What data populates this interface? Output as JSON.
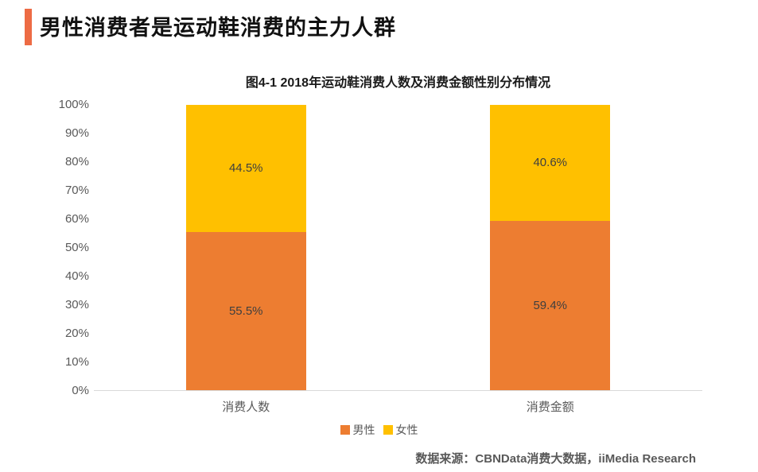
{
  "header": {
    "title": "男性消费者是运动鞋消费的主力人群",
    "accent_color": "#ED6B44"
  },
  "chart_data": {
    "type": "bar",
    "stacked": true,
    "title": "图4-1 2018年运动鞋消费人数及消费金额性别分布情况",
    "categories": [
      "消费人数",
      "消费金额"
    ],
    "series": [
      {
        "key": "male",
        "name": "男性",
        "color": "#ED7D31",
        "values": [
          55.5,
          59.4
        ]
      },
      {
        "key": "female",
        "name": "女性",
        "color": "#FFC000",
        "values": [
          44.5,
          40.6
        ]
      }
    ],
    "value_suffix": "%",
    "ylabel": "",
    "xlabel": "",
    "ylim": [
      0,
      100
    ],
    "y_ticks": [
      "0%",
      "10%",
      "20%",
      "30%",
      "40%",
      "50%",
      "60%",
      "70%",
      "80%",
      "90%",
      "100%"
    ],
    "grid": false,
    "legend_position": "bottom",
    "axis_line_color": "#D9D9D9",
    "axis_text_color": "#595959"
  },
  "footer": {
    "source": "数据来源：CBNData消费大数据，iiMedia Research"
  }
}
